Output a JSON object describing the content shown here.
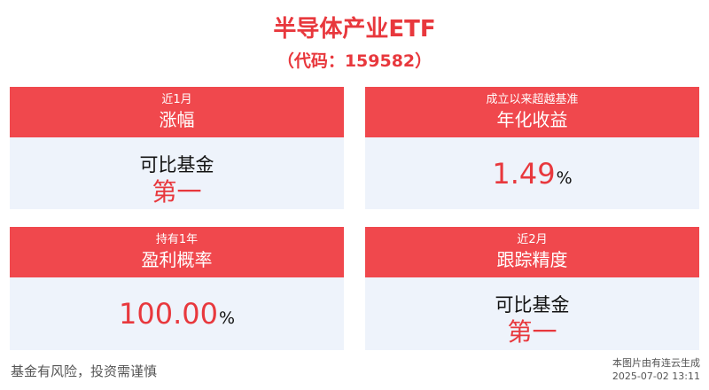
{
  "header": {
    "title": "半导体产业ETF",
    "subtitle": "（代码：159582）"
  },
  "cards": [
    {
      "label_top": "近1月",
      "label_main": "涨幅",
      "body_label": "可比基金",
      "body_rank": "第一"
    },
    {
      "label_top": "成立以来超越基准",
      "label_main": "年化收益",
      "value": "1.49",
      "unit": "%"
    },
    {
      "label_top": "持有1年",
      "label_main": "盈利概率",
      "value": "100.00",
      "unit": "%"
    },
    {
      "label_top": "近2月",
      "label_main": "跟踪精度",
      "body_label": "可比基金",
      "body_rank": "第一"
    }
  ],
  "footer": {
    "disclaimer": "基金有风险，投资需谨慎",
    "generated_by": "本图片由有连云生成",
    "timestamp": "2025-07-02 13:11"
  },
  "colors": {
    "accent": "#f0484d",
    "highlight_text": "#e8383d",
    "card_body_bg": "#eef3fb"
  }
}
